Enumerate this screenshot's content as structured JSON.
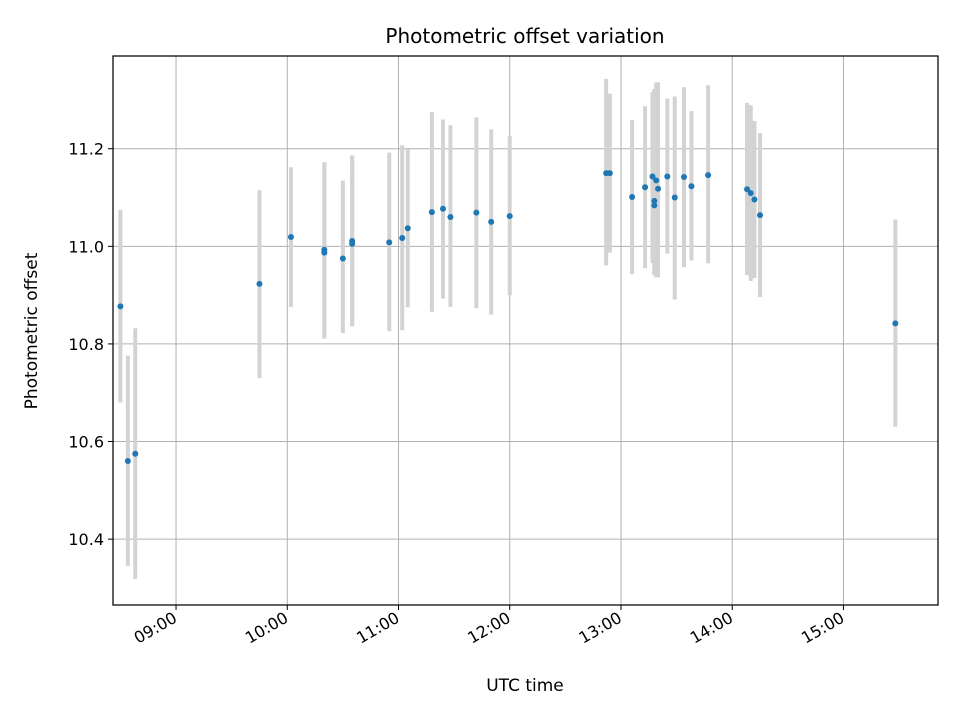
{
  "chart_data": {
    "type": "scatter",
    "title": "Photometric offset variation",
    "xlabel": "UTC time",
    "ylabel": "Photometric offset",
    "xlim": [
      "08:26",
      "15:51"
    ],
    "ylim": [
      10.265,
      11.39
    ],
    "grid": true,
    "x_ticks": [
      "09:00",
      "10:00",
      "11:00",
      "12:00",
      "13:00",
      "14:00",
      "15:00"
    ],
    "y_ticks": [
      "10.4",
      "10.6",
      "10.8",
      "11.0",
      "11.2"
    ],
    "marker_color": "#1f77b4",
    "errorbar_color": "#d3d3d3",
    "series": [
      {
        "points": [
          {
            "x": "08:30",
            "y": 10.877,
            "err_low": 10.68,
            "err_high": 11.075
          },
          {
            "x": "08:34",
            "y": 10.56,
            "err_low": 10.345,
            "err_high": 10.776
          },
          {
            "x": "08:38",
            "y": 10.575,
            "err_low": 10.318,
            "err_high": 10.832
          },
          {
            "x": "09:45",
            "y": 10.923,
            "err_low": 10.73,
            "err_high": 11.115
          },
          {
            "x": "10:02",
            "y": 11.019,
            "err_low": 10.876,
            "err_high": 11.162
          },
          {
            "x": "10:20",
            "y": 10.993,
            "err_low": 10.811,
            "err_high": 11.172
          },
          {
            "x": "10:20",
            "y": 10.987,
            "err_low": 10.811,
            "err_high": 11.172
          },
          {
            "x": "10:30",
            "y": 10.975,
            "err_low": 10.822,
            "err_high": 11.135
          },
          {
            "x": "10:35",
            "y": 11.011,
            "err_low": 10.836,
            "err_high": 11.186
          },
          {
            "x": "10:35",
            "y": 11.005,
            "err_low": 10.836,
            "err_high": 11.186
          },
          {
            "x": "10:55",
            "y": 11.008,
            "err_low": 10.826,
            "err_high": 11.192
          },
          {
            "x": "11:02",
            "y": 11.017,
            "err_low": 10.828,
            "err_high": 11.207
          },
          {
            "x": "11:05",
            "y": 11.037,
            "err_low": 10.875,
            "err_high": 11.199
          },
          {
            "x": "11:18",
            "y": 11.07,
            "err_low": 10.866,
            "err_high": 11.275
          },
          {
            "x": "11:24",
            "y": 11.077,
            "err_low": 10.893,
            "err_high": 11.26
          },
          {
            "x": "11:28",
            "y": 11.06,
            "err_low": 10.876,
            "err_high": 11.248
          },
          {
            "x": "11:42",
            "y": 11.069,
            "err_low": 10.873,
            "err_high": 11.264
          },
          {
            "x": "11:50",
            "y": 11.05,
            "err_low": 10.86,
            "err_high": 11.24
          },
          {
            "x": "12:00",
            "y": 11.062,
            "err_low": 10.9,
            "err_high": 11.226
          },
          {
            "x": "12:52",
            "y": 11.15,
            "err_low": 10.961,
            "err_high": 11.343
          },
          {
            "x": "12:54",
            "y": 11.15,
            "err_low": 10.987,
            "err_high": 11.313
          },
          {
            "x": "13:06",
            "y": 11.101,
            "err_low": 10.943,
            "err_high": 11.259
          },
          {
            "x": "13:13",
            "y": 11.121,
            "err_low": 10.955,
            "err_high": 11.287
          },
          {
            "x": "13:17",
            "y": 11.143,
            "err_low": 10.966,
            "err_high": 11.316
          },
          {
            "x": "13:18",
            "y": 11.084,
            "err_low": 10.941,
            "err_high": 11.322
          },
          {
            "x": "13:18",
            "y": 11.093,
            "err_low": 10.941,
            "err_high": 11.322
          },
          {
            "x": "13:19",
            "y": 11.135,
            "err_low": 10.936,
            "err_high": 11.336
          },
          {
            "x": "13:20",
            "y": 11.118,
            "err_low": 10.936,
            "err_high": 11.336
          },
          {
            "x": "13:25",
            "y": 11.143,
            "err_low": 10.985,
            "err_high": 11.303
          },
          {
            "x": "13:29",
            "y": 11.1,
            "err_low": 10.891,
            "err_high": 11.307
          },
          {
            "x": "13:34",
            "y": 11.142,
            "err_low": 10.957,
            "err_high": 11.326
          },
          {
            "x": "13:38",
            "y": 11.123,
            "err_low": 10.971,
            "err_high": 11.277
          },
          {
            "x": "13:47",
            "y": 11.146,
            "err_low": 10.965,
            "err_high": 11.33
          },
          {
            "x": "14:08",
            "y": 11.117,
            "err_low": 10.941,
            "err_high": 11.294
          },
          {
            "x": "14:10",
            "y": 11.109,
            "err_low": 10.929,
            "err_high": 11.289
          },
          {
            "x": "14:12",
            "y": 11.096,
            "err_low": 10.935,
            "err_high": 11.257
          },
          {
            "x": "14:15",
            "y": 11.064,
            "err_low": 10.896,
            "err_high": 11.232
          },
          {
            "x": "15:28",
            "y": 10.842,
            "err_low": 10.63,
            "err_high": 11.055
          }
        ]
      }
    ]
  }
}
